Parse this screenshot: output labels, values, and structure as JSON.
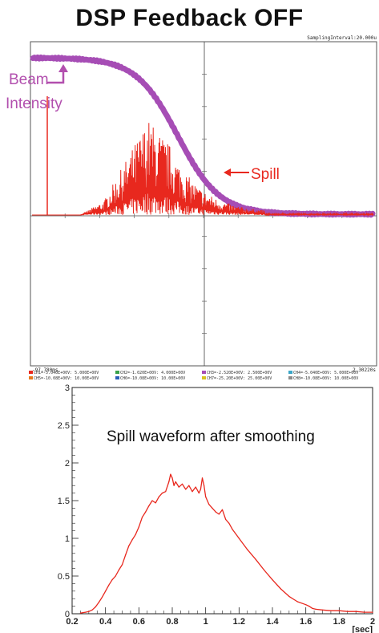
{
  "header": {
    "title": "DSP Feedback OFF"
  },
  "scope": {
    "sampling_interval": "SamplingInterval:20.000u",
    "time_start": "-97.780ms",
    "time_end": "2.30220s",
    "beam_label_line1": "Beam",
    "beam_label_line2": "Intensity",
    "spill_label": "Spill",
    "channels": [
      {
        "label": "CH1=-5.040E+00V: 5.000E+00V",
        "color": "#e8281e"
      },
      {
        "label": "CH2=-1.020E+00V: 4.000E+00V",
        "color": "#3aa24a"
      },
      {
        "label": "CH3=-2.520E+00V: 2.500E+00V",
        "color": "#a64db5"
      },
      {
        "label": "CH4=-5.040E+00V: 5.000E+00V",
        "color": "#3aa6c8"
      },
      {
        "label": "CH5=-10.08E+00V: 10.00E+00V",
        "color": "#e87a1e"
      },
      {
        "label": "CH6=-10.08E+00V: 10.00E+00V",
        "color": "#2a5fb8"
      },
      {
        "label": "CH7=-25.20E+00V: 25.00E+00V",
        "color": "#d8c21e"
      },
      {
        "label": "CH8=-10.08E+00V: 10.00E+00V",
        "color": "#8a8a8a"
      }
    ],
    "colors": {
      "beam": "#a64db5",
      "spill": "#e8281e",
      "grid": "#444444"
    }
  },
  "chart_data": {
    "type": "line",
    "title": "Spill waveform after smoothing",
    "xlabel": "[sec]",
    "ylabel": "",
    "xlim": [
      0.2,
      2.0
    ],
    "ylim": [
      0,
      3
    ],
    "xticks": [
      "0.2",
      "0.4",
      "0.6",
      "0.8",
      "1",
      "1.2",
      "1.4",
      "1.6",
      "1.8",
      "2"
    ],
    "yticks": [
      "0",
      "0.5",
      "1",
      "1.5",
      "2",
      "2.5",
      "3"
    ],
    "color": "#e8281e",
    "x": [
      0.25,
      0.28,
      0.3,
      0.32,
      0.34,
      0.36,
      0.38,
      0.4,
      0.42,
      0.44,
      0.46,
      0.48,
      0.5,
      0.52,
      0.54,
      0.56,
      0.58,
      0.6,
      0.62,
      0.64,
      0.66,
      0.68,
      0.7,
      0.72,
      0.74,
      0.76,
      0.78,
      0.79,
      0.8,
      0.81,
      0.82,
      0.84,
      0.86,
      0.88,
      0.9,
      0.92,
      0.94,
      0.96,
      0.97,
      0.98,
      0.99,
      1.0,
      1.02,
      1.04,
      1.06,
      1.08,
      1.1,
      1.12,
      1.14,
      1.16,
      1.2,
      1.25,
      1.3,
      1.35,
      1.4,
      1.45,
      1.5,
      1.55,
      1.6,
      1.62,
      1.64,
      1.66,
      1.7,
      1.75,
      1.8,
      1.85,
      1.9,
      1.95,
      2.0
    ],
    "y": [
      0.01,
      0.02,
      0.03,
      0.05,
      0.09,
      0.15,
      0.22,
      0.3,
      0.38,
      0.45,
      0.5,
      0.58,
      0.65,
      0.78,
      0.9,
      0.98,
      1.05,
      1.15,
      1.28,
      1.35,
      1.43,
      1.5,
      1.47,
      1.55,
      1.6,
      1.62,
      1.75,
      1.85,
      1.8,
      1.7,
      1.75,
      1.68,
      1.72,
      1.65,
      1.7,
      1.62,
      1.68,
      1.6,
      1.65,
      1.8,
      1.7,
      1.55,
      1.45,
      1.4,
      1.35,
      1.32,
      1.38,
      1.25,
      1.2,
      1.12,
      1.0,
      0.85,
      0.72,
      0.58,
      0.45,
      0.33,
      0.23,
      0.16,
      0.12,
      0.1,
      0.07,
      0.06,
      0.05,
      0.04,
      0.04,
      0.03,
      0.03,
      0.02,
      0.02
    ]
  }
}
